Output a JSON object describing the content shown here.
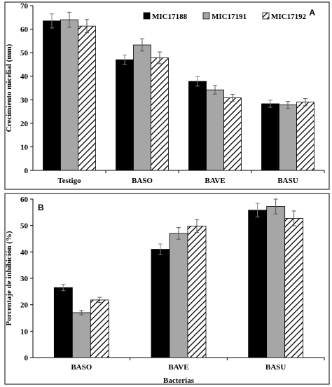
{
  "chart_data": [
    {
      "type": "bar",
      "panel_label": "A",
      "categories": [
        "Testigo",
        "BASO",
        "BAVE",
        "BASU"
      ],
      "series": [
        {
          "name": "MIC17188",
          "values": [
            63.5,
            47.0,
            37.8,
            28.3
          ],
          "errors": [
            3.0,
            2.0,
            2.0,
            1.5
          ],
          "fill": "#000000",
          "pattern": "solid"
        },
        {
          "name": "MIC17191",
          "values": [
            64.0,
            53.3,
            34.2,
            27.8
          ],
          "errors": [
            3.2,
            2.6,
            1.8,
            1.5
          ],
          "fill": "#a6a6a6",
          "pattern": "solid"
        },
        {
          "name": "MIC17192",
          "values": [
            61.3,
            47.8,
            30.8,
            29.0
          ],
          "errors": [
            2.8,
            2.5,
            1.5,
            1.5
          ],
          "fill": "#ffffff",
          "pattern": "hatch"
        }
      ],
      "ylabel": "Crecimiento micelial (mm)",
      "xlabel": "",
      "ylim": [
        0,
        70
      ],
      "yticks": [
        0,
        10,
        20,
        30,
        40,
        50,
        60,
        70
      ],
      "legend": "top-right",
      "grid": false
    },
    {
      "type": "bar",
      "panel_label": "B",
      "categories": [
        "BASO",
        "BAVE",
        "BASU"
      ],
      "series": [
        {
          "name": "MIC17188",
          "values": [
            26.5,
            41.0,
            55.8
          ],
          "errors": [
            1.2,
            2.0,
            2.6
          ],
          "fill": "#000000",
          "pattern": "solid"
        },
        {
          "name": "MIC17191",
          "values": [
            17.0,
            47.0,
            57.2
          ],
          "errors": [
            0.8,
            2.2,
            2.8
          ],
          "fill": "#a6a6a6",
          "pattern": "solid"
        },
        {
          "name": "MIC17192",
          "values": [
            21.8,
            49.8,
            52.7
          ],
          "errors": [
            1.0,
            2.4,
            2.8
          ],
          "fill": "#ffffff",
          "pattern": "hatch"
        }
      ],
      "ylabel": "Porcentaje de inhibición (%)",
      "xlabel": "Bacterias",
      "ylim": [
        0,
        60
      ],
      "yticks": [
        0,
        10,
        20,
        30,
        40,
        50,
        60
      ],
      "legend": "none",
      "grid": false
    }
  ]
}
